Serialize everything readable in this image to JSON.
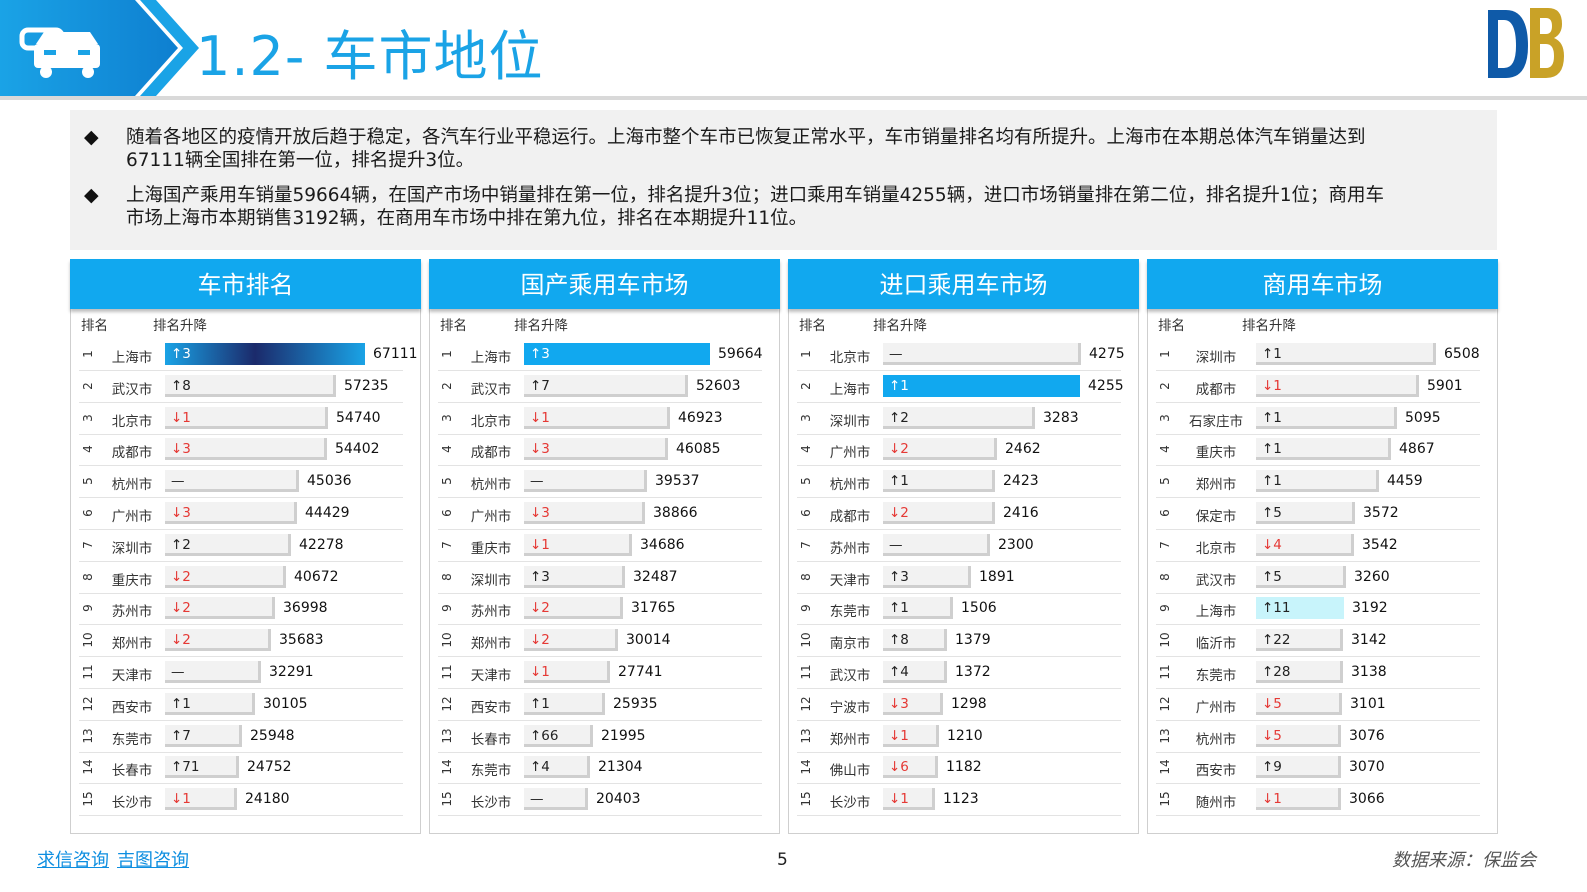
{
  "header": {
    "title": "1.2- 车市地位"
  },
  "summary": {
    "bullets": [
      {
        "symbol": "◆",
        "line1": "随着各地区的疫情开放后趋于稳定，各汽车行业平稳运行。上海市整个车市已恢复正常水平，车市销量排名均有所提升。上海市在本期总体汽车销量达到",
        "line2": "67111辆全国排在第一位，排名提升3位。"
      },
      {
        "symbol": "◆",
        "line1": "上海国产乘用车销量59664辆，在国产市场中销量排在第一位，排名提升3位；进口乘用车销量4255辆，进口市场销量排在第二位，排名提升1位；商用车",
        "line2": "市场上海市本期销售3192辆，在商用车市场中排在第九位，排名在本期提升11位。"
      }
    ]
  },
  "panels": [
    {
      "title": "车市排名",
      "col_rank": "排名",
      "col_change": "排名升降",
      "max": 67111,
      "rows": [
        {
          "rank": "1",
          "city": "上海市",
          "change": "↑3",
          "dir": "up",
          "value": 67111,
          "highlight": "gradient"
        },
        {
          "rank": "2",
          "city": "武汉市",
          "change": "↑8",
          "dir": "up",
          "value": 57235
        },
        {
          "rank": "3",
          "city": "北京市",
          "change": "↓1",
          "dir": "down",
          "value": 54740
        },
        {
          "rank": "4",
          "city": "成都市",
          "change": "↓3",
          "dir": "down",
          "value": 54402
        },
        {
          "rank": "5",
          "city": "杭州市",
          "change": "—",
          "dir": "same",
          "value": 45036
        },
        {
          "rank": "6",
          "city": "广州市",
          "change": "↓3",
          "dir": "down",
          "value": 44429
        },
        {
          "rank": "7",
          "city": "深圳市",
          "change": "↑2",
          "dir": "up",
          "value": 42278
        },
        {
          "rank": "8",
          "city": "重庆市",
          "change": "↓2",
          "dir": "down",
          "value": 40672
        },
        {
          "rank": "9",
          "city": "苏州市",
          "change": "↓2",
          "dir": "down",
          "value": 36998
        },
        {
          "rank": "10",
          "city": "郑州市",
          "change": "↓2",
          "dir": "down",
          "value": 35683
        },
        {
          "rank": "11",
          "city": "天津市",
          "change": "—",
          "dir": "same",
          "value": 32291
        },
        {
          "rank": "12",
          "city": "西安市",
          "change": "↑1",
          "dir": "up",
          "value": 30105
        },
        {
          "rank": "13",
          "city": "东莞市",
          "change": "↑7",
          "dir": "up",
          "value": 25948
        },
        {
          "rank": "14",
          "city": "长春市",
          "change": "↑71",
          "dir": "up",
          "value": 24752
        },
        {
          "rank": "15",
          "city": "长沙市",
          "change": "↓1",
          "dir": "down",
          "value": 24180
        }
      ]
    },
    {
      "title": "国产乘用车市场",
      "col_rank": "排名",
      "col_change": "排名升降",
      "max": 59664,
      "rows": [
        {
          "rank": "1",
          "city": "上海市",
          "change": "↑3",
          "dir": "up",
          "value": 59664,
          "highlight": "blue"
        },
        {
          "rank": "2",
          "city": "武汉市",
          "change": "↑7",
          "dir": "up",
          "value": 52603
        },
        {
          "rank": "3",
          "city": "北京市",
          "change": "↓1",
          "dir": "down",
          "value": 46923
        },
        {
          "rank": "4",
          "city": "成都市",
          "change": "↓3",
          "dir": "down",
          "value": 46085
        },
        {
          "rank": "5",
          "city": "杭州市",
          "change": "—",
          "dir": "same",
          "value": 39537
        },
        {
          "rank": "6",
          "city": "广州市",
          "change": "↓3",
          "dir": "down",
          "value": 38866
        },
        {
          "rank": "7",
          "city": "重庆市",
          "change": "↓1",
          "dir": "down",
          "value": 34686
        },
        {
          "rank": "8",
          "city": "深圳市",
          "change": "↑3",
          "dir": "up",
          "value": 32487
        },
        {
          "rank": "9",
          "city": "苏州市",
          "change": "↓2",
          "dir": "down",
          "value": 31765
        },
        {
          "rank": "10",
          "city": "郑州市",
          "change": "↓2",
          "dir": "down",
          "value": 30014
        },
        {
          "rank": "11",
          "city": "天津市",
          "change": "↓1",
          "dir": "down",
          "value": 27741
        },
        {
          "rank": "12",
          "city": "西安市",
          "change": "↑1",
          "dir": "up",
          "value": 25935
        },
        {
          "rank": "13",
          "city": "长春市",
          "change": "↑66",
          "dir": "up",
          "value": 21995
        },
        {
          "rank": "14",
          "city": "东莞市",
          "change": "↑4",
          "dir": "up",
          "value": 21304
        },
        {
          "rank": "15",
          "city": "长沙市",
          "change": "—",
          "dir": "same",
          "value": 20403
        }
      ]
    },
    {
      "title": "进口乘用车市场",
      "col_rank": "排名",
      "col_change": "排名升降",
      "max": 4275,
      "rows": [
        {
          "rank": "1",
          "city": "北京市",
          "change": "—",
          "dir": "same",
          "value": 4275
        },
        {
          "rank": "2",
          "city": "上海市",
          "change": "↑1",
          "dir": "up",
          "value": 4255,
          "highlight": "blue"
        },
        {
          "rank": "3",
          "city": "深圳市",
          "change": "↑2",
          "dir": "up",
          "value": 3283
        },
        {
          "rank": "4",
          "city": "广州市",
          "change": "↓2",
          "dir": "down",
          "value": 2462
        },
        {
          "rank": "5",
          "city": "杭州市",
          "change": "↑1",
          "dir": "up",
          "value": 2423
        },
        {
          "rank": "6",
          "city": "成都市",
          "change": "↓2",
          "dir": "down",
          "value": 2416
        },
        {
          "rank": "7",
          "city": "苏州市",
          "change": "—",
          "dir": "same",
          "value": 2300
        },
        {
          "rank": "8",
          "city": "天津市",
          "change": "↑3",
          "dir": "up",
          "value": 1891
        },
        {
          "rank": "9",
          "city": "东莞市",
          "change": "↑1",
          "dir": "up",
          "value": 1506
        },
        {
          "rank": "10",
          "city": "南京市",
          "change": "↑8",
          "dir": "up",
          "value": 1379
        },
        {
          "rank": "11",
          "city": "武汉市",
          "change": "↑4",
          "dir": "up",
          "value": 1372
        },
        {
          "rank": "12",
          "city": "宁波市",
          "change": "↓3",
          "dir": "down",
          "value": 1298
        },
        {
          "rank": "13",
          "city": "郑州市",
          "change": "↓1",
          "dir": "down",
          "value": 1210
        },
        {
          "rank": "14",
          "city": "佛山市",
          "change": "↓6",
          "dir": "down",
          "value": 1182
        },
        {
          "rank": "15",
          "city": "长沙市",
          "change": "↓1",
          "dir": "down",
          "value": 1123
        }
      ]
    },
    {
      "title": "商用车市场",
      "col_rank": "排名",
      "col_change": "排名升降",
      "max": 6508,
      "rows": [
        {
          "rank": "1",
          "city": "深圳市",
          "change": "↑1",
          "dir": "up",
          "value": 6508
        },
        {
          "rank": "2",
          "city": "成都市",
          "change": "↓1",
          "dir": "down",
          "value": 5901
        },
        {
          "rank": "3",
          "city": "石家庄市",
          "change": "↑1",
          "dir": "up",
          "value": 5095
        },
        {
          "rank": "4",
          "city": "重庆市",
          "change": "↑1",
          "dir": "up",
          "value": 4867
        },
        {
          "rank": "5",
          "city": "郑州市",
          "change": "↑1",
          "dir": "up",
          "value": 4459
        },
        {
          "rank": "6",
          "city": "保定市",
          "change": "↑5",
          "dir": "up",
          "value": 3572
        },
        {
          "rank": "7",
          "city": "北京市",
          "change": "↓4",
          "dir": "down",
          "value": 3542
        },
        {
          "rank": "8",
          "city": "武汉市",
          "change": "↑5",
          "dir": "up",
          "value": 3260
        },
        {
          "rank": "9",
          "city": "上海市",
          "change": "↑11",
          "dir": "up",
          "value": 3192,
          "highlight": "light"
        },
        {
          "rank": "10",
          "city": "临沂市",
          "change": "↑22",
          "dir": "up",
          "value": 3142
        },
        {
          "rank": "11",
          "city": "东莞市",
          "change": "↑28",
          "dir": "up",
          "value": 3138
        },
        {
          "rank": "12",
          "city": "广州市",
          "change": "↓5",
          "dir": "down",
          "value": 3101
        },
        {
          "rank": "13",
          "city": "杭州市",
          "change": "↓5",
          "dir": "down",
          "value": 3076
        },
        {
          "rank": "14",
          "city": "西安市",
          "change": "↑9",
          "dir": "up",
          "value": 3070
        },
        {
          "rank": "15",
          "city": "随州市",
          "change": "↓1",
          "dir": "down",
          "value": 3066
        }
      ]
    }
  ],
  "footer": {
    "brand1": "求信咨询",
    "brand2": "吉图咨询",
    "page": "5",
    "source": "数据来源：保监会"
  },
  "colors": {
    "accent": "#11a8ef",
    "down": "#e53935",
    "highlight_light": "#c8f4fb"
  },
  "icons": {
    "header": "car-icon",
    "logo": "db-logo-icon"
  }
}
